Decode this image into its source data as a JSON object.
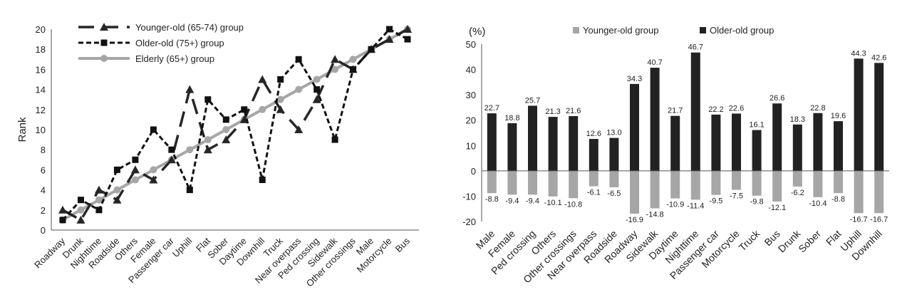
{
  "colors": {
    "dark": "#262626",
    "gray": "#a6a6a6",
    "axis": "#555555",
    "bar_dark": "#222222"
  },
  "chart_data": [
    {
      "type": "line",
      "ylabel": "Rank",
      "ylim": [
        0,
        20
      ],
      "yticks": [
        0,
        2,
        4,
        6,
        8,
        10,
        12,
        14,
        16,
        18,
        20
      ],
      "categories": [
        "Roadway",
        "Drunk",
        "Nighttime",
        "Roadside",
        "Others",
        "Female",
        "Passenger car",
        "Uphill",
        "Flat",
        "Sober",
        "Daytime",
        "Downhill",
        "Truck",
        "Near overpass",
        "Ped crossing",
        "Sidewalk",
        "Other crossings",
        "Male",
        "Motorcycle",
        "Bus"
      ],
      "legend_position": "top-left",
      "series": [
        {
          "name": "Younger-old (65-74) group",
          "style": "long-dash-triangle",
          "values": [
            2,
            1,
            4,
            3,
            6,
            5,
            7,
            14,
            8,
            9,
            11,
            15,
            12,
            10,
            13,
            17,
            16,
            18,
            19,
            20
          ]
        },
        {
          "name": "Older-old (75+) group",
          "style": "short-dash-square",
          "values": [
            1,
            3,
            2,
            6,
            7,
            10,
            8,
            4,
            13,
            11,
            12,
            5,
            15,
            17,
            14,
            9,
            16,
            18,
            20,
            19
          ]
        },
        {
          "name": "Elderly (65+) group",
          "style": "solid-circle-gray",
          "values": [
            1,
            2,
            3,
            4,
            5,
            6,
            7,
            8,
            9,
            10,
            11,
            12,
            13,
            14,
            15,
            16,
            17,
            18,
            19,
            20
          ]
        }
      ]
    },
    {
      "type": "bar",
      "unit_label": "(%)",
      "ylim": [
        -20,
        50
      ],
      "yticks": [
        -20,
        -10,
        0,
        10,
        20,
        30,
        40,
        50
      ],
      "legend_position": "top",
      "categories": [
        "Male",
        "Female",
        "Ped crossing",
        "Others",
        "Other crossings",
        "Near overpass",
        "Roadside",
        "Roadway",
        "Sidewalk",
        "Daytime",
        "Nighttime",
        "Passenger car",
        "Motorcycle",
        "Truck",
        "Bus",
        "Drunk",
        "Sober",
        "Flat",
        "Uphill",
        "Downhill"
      ],
      "series": [
        {
          "name": "Younger-old group",
          "values": [
            -8.8,
            -9.4,
            -9.4,
            -10.1,
            -10.8,
            -6.1,
            -6.5,
            -16.9,
            -14.8,
            -10.9,
            -11.4,
            -9.5,
            -7.5,
            -9.8,
            -12.1,
            -6.2,
            -10.4,
            -8.8,
            -16.7,
            -16.7
          ],
          "labels": [
            "-8.8",
            "-9.4",
            "-9.4",
            "-10.1",
            "-10.8",
            "-6.1",
            "-6.5",
            "-16.9",
            "-14.8",
            "-10.9",
            "-11.4",
            "-9.5",
            "-7.5",
            "-9.8",
            "-12.1",
            "-6.2",
            "-10.4",
            "-8.8",
            "-16.7",
            "-16.7"
          ]
        },
        {
          "name": "Older-old group",
          "values": [
            22.7,
            18.8,
            25.7,
            21.3,
            21.6,
            12.6,
            13.0,
            34.3,
            40.7,
            21.7,
            46.7,
            22.2,
            22.6,
            16.1,
            26.6,
            18.3,
            22.8,
            19.6,
            44.3,
            42.6
          ],
          "labels": [
            "22.7",
            "18.8",
            "25.7",
            "21.3",
            "21.6",
            "12.6",
            "13.0",
            "34.3",
            "40.7",
            "21.7",
            "46.7",
            "22.2",
            "22.6",
            "16.1",
            "26.6",
            "18.3",
            "22.8",
            "19.6",
            "44.3",
            "42.6"
          ]
        }
      ]
    }
  ]
}
